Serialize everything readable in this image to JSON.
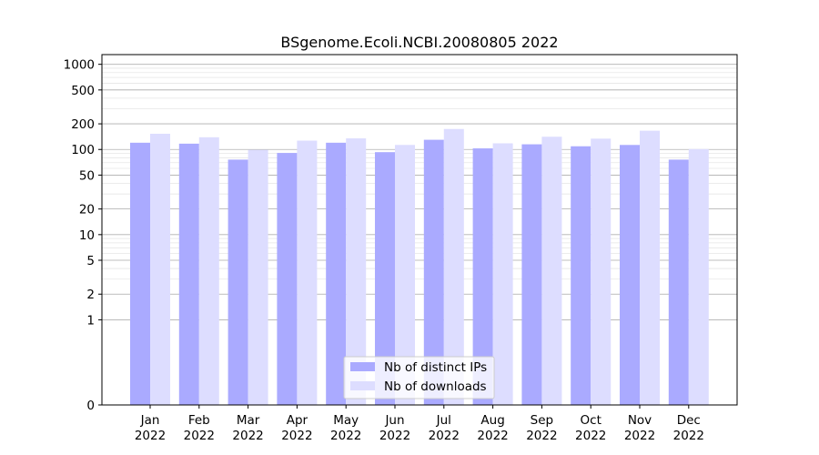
{
  "chart_data": {
    "type": "bar",
    "title": "BSgenome.Ecoli.NCBI.20080805 2022",
    "xlabel": "",
    "ylabel": "",
    "yscale": "symlog",
    "ylim": [
      0,
      1300
    ],
    "yticks": [
      0,
      1,
      2,
      5,
      10,
      20,
      50,
      100,
      200,
      500,
      1000
    ],
    "grid": true,
    "legend_position": "lower-center",
    "categories": [
      [
        "Jan",
        "2022"
      ],
      [
        "Feb",
        "2022"
      ],
      [
        "Mar",
        "2022"
      ],
      [
        "Apr",
        "2022"
      ],
      [
        "May",
        "2022"
      ],
      [
        "Jun",
        "2022"
      ],
      [
        "Jul",
        "2022"
      ],
      [
        "Aug",
        "2022"
      ],
      [
        "Sep",
        "2022"
      ],
      [
        "Oct",
        "2022"
      ],
      [
        "Nov",
        "2022"
      ],
      [
        "Dec",
        "2022"
      ]
    ],
    "series": [
      {
        "name": "Nb of distinct IPs",
        "color": "#aaaaff",
        "values": [
          120,
          117,
          76,
          91,
          120,
          93,
          130,
          103,
          115,
          109,
          113,
          76
        ]
      },
      {
        "name": "Nb of downloads",
        "color": "#ddddff",
        "values": [
          153,
          139,
          99,
          127,
          135,
          113,
          174,
          118,
          141,
          134,
          166,
          101
        ]
      }
    ]
  }
}
